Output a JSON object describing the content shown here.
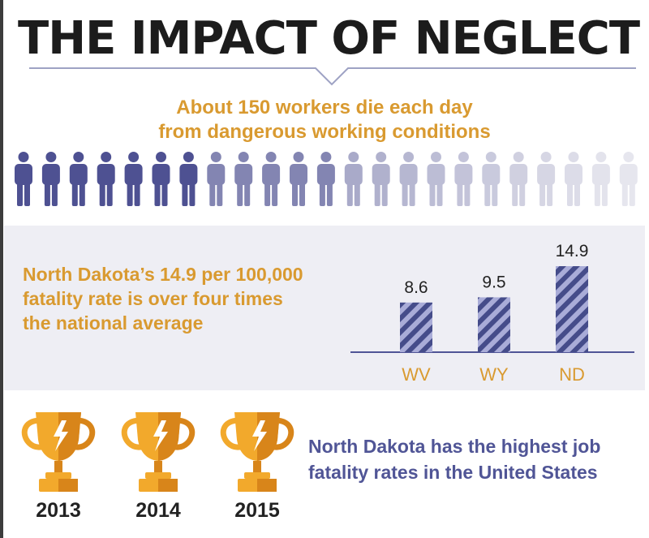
{
  "header": {
    "title": "THE IMPACT OF NEGLECT"
  },
  "workers": {
    "subtitle_line1": "About 150 workers die each day",
    "subtitle_line2": "from dangerous working conditions",
    "icon": "person-icon",
    "count": 23
  },
  "panel": {
    "text_line1": "North Dakota’s 14.9 per 100,000",
    "text_line2": "fatality rate is over four times",
    "text_line3": "the national average"
  },
  "chart_data": {
    "type": "bar",
    "categories": [
      "WV",
      "WY",
      "ND"
    ],
    "values": [
      8.6,
      9.5,
      14.9
    ],
    "data_labels": [
      "8.6",
      "9.5",
      "14.9"
    ],
    "title": "",
    "xlabel": "",
    "ylabel": "",
    "grid": false,
    "legend": "none",
    "bar_pattern": "diagonal-stripes"
  },
  "trophies": {
    "icon": "trophy-icon",
    "years": [
      "2013",
      "2014",
      "2015"
    ],
    "text_line1": "North Dakota has the highest job",
    "text_line2": "fatality rates in the United States"
  },
  "colors": {
    "title": "#1c1c1c",
    "accent_orange": "#d99a30",
    "accent_purple": "#505596",
    "bar_dark": "#454c8a",
    "bar_light": "#a9acd8",
    "panel_bg": "#eeeef4",
    "trophy_gold": "#f2a92c",
    "trophy_dark": "#d8851a",
    "person_dark": "#4e5192",
    "person_light": "#e6e6ee"
  }
}
